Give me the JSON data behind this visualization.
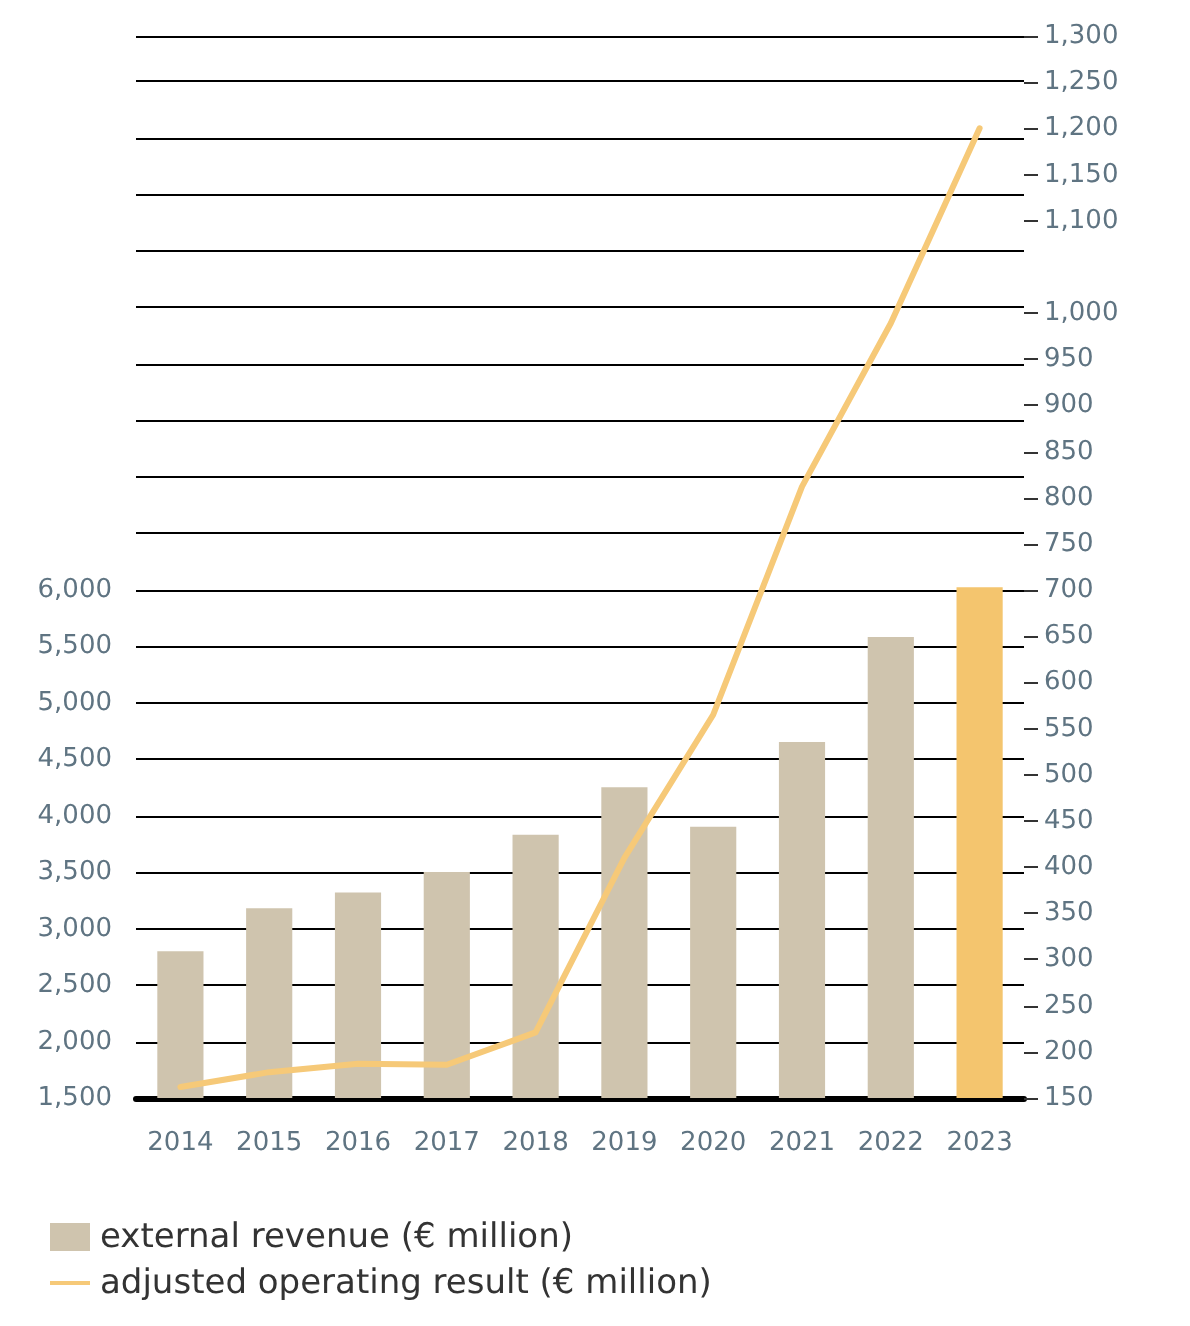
{
  "chart_data": {
    "type": "bar",
    "categories": [
      "2014",
      "2015",
      "2016",
      "2017",
      "2018",
      "2019",
      "2020",
      "2021",
      "2022",
      "2023"
    ],
    "series": [
      {
        "name": "external revenue (€ million)",
        "color": "#cfc4ae",
        "colors": [
          "#cfc4ae",
          "#cfc4ae",
          "#cfc4ae",
          "#cfc4ae",
          "#cfc4ae",
          "#cfc4ae",
          "#cfc4ae",
          "#cfc4ae",
          "#cfc4ae",
          "#f4c56e"
        ],
        "values": [
          2800,
          3180,
          3320,
          3500,
          3830,
          4250,
          3900,
          4650,
          5580,
          6020
        ]
      },
      {
        "name": "adjusted operating result (€ million)",
        "type": "line",
        "axis": "y2",
        "color": "#f6c978",
        "values": [
          162,
          178,
          187,
          186,
          221,
          410,
          565,
          812,
          989,
          1200
        ]
      }
    ],
    "ylim": [
      1500,
      10900
    ],
    "yticks": [
      {
        "value": 1500,
        "label": "1,500"
      },
      {
        "value": 2000,
        "label": "2,000"
      },
      {
        "value": 2500,
        "label": "2,500"
      },
      {
        "value": 3000,
        "label": "3,000"
      },
      {
        "value": 3500,
        "label": "3,500"
      },
      {
        "value": 4000,
        "label": "4,000"
      },
      {
        "value": 4500,
        "label": "4,500"
      },
      {
        "value": 5000,
        "label": "5,000"
      },
      {
        "value": 5500,
        "label": "5,500"
      },
      {
        "value": 6000,
        "label": "6,000"
      },
      {
        "value": 6500,
        "label": null
      },
      {
        "value": 7000,
        "label": null
      },
      {
        "value": 7500,
        "label": null
      },
      {
        "value": 8000,
        "label": null
      },
      {
        "value": 8500,
        "label": null
      },
      {
        "value": 9000,
        "label": null
      },
      {
        "value": 9500,
        "label": null
      },
      {
        "value": 10000,
        "label": null
      },
      {
        "value": 10500,
        "label": null
      }
    ],
    "y2lim": [
      150,
      1300
    ],
    "y2ticks": [
      {
        "value": 150,
        "label": "150"
      },
      {
        "value": 200,
        "label": "200"
      },
      {
        "value": 250,
        "label": "250"
      },
      {
        "value": 300,
        "label": "300"
      },
      {
        "value": 350,
        "label": "350"
      },
      {
        "value": 400,
        "label": "400"
      },
      {
        "value": 450,
        "label": "450"
      },
      {
        "value": 500,
        "label": "500"
      },
      {
        "value": 550,
        "label": "550"
      },
      {
        "value": 600,
        "label": "600"
      },
      {
        "value": 650,
        "label": "650"
      },
      {
        "value": 700,
        "label": "700"
      },
      {
        "value": 750,
        "label": "750"
      },
      {
        "value": 800,
        "label": "800"
      },
      {
        "value": 850,
        "label": "850"
      },
      {
        "value": 900,
        "label": "900"
      },
      {
        "value": 950,
        "label": "950"
      },
      {
        "value": 1000,
        "label": "1,000"
      },
      {
        "value": 1100,
        "label": "1,100"
      },
      {
        "value": 1150,
        "label": "1,150"
      },
      {
        "value": 1200,
        "label": "1,200"
      },
      {
        "value": 1250,
        "label": "1,250"
      },
      {
        "value": 1300,
        "label": "1,300"
      }
    ],
    "grid": "y",
    "legend": "bottom left",
    "marker": "none"
  }
}
